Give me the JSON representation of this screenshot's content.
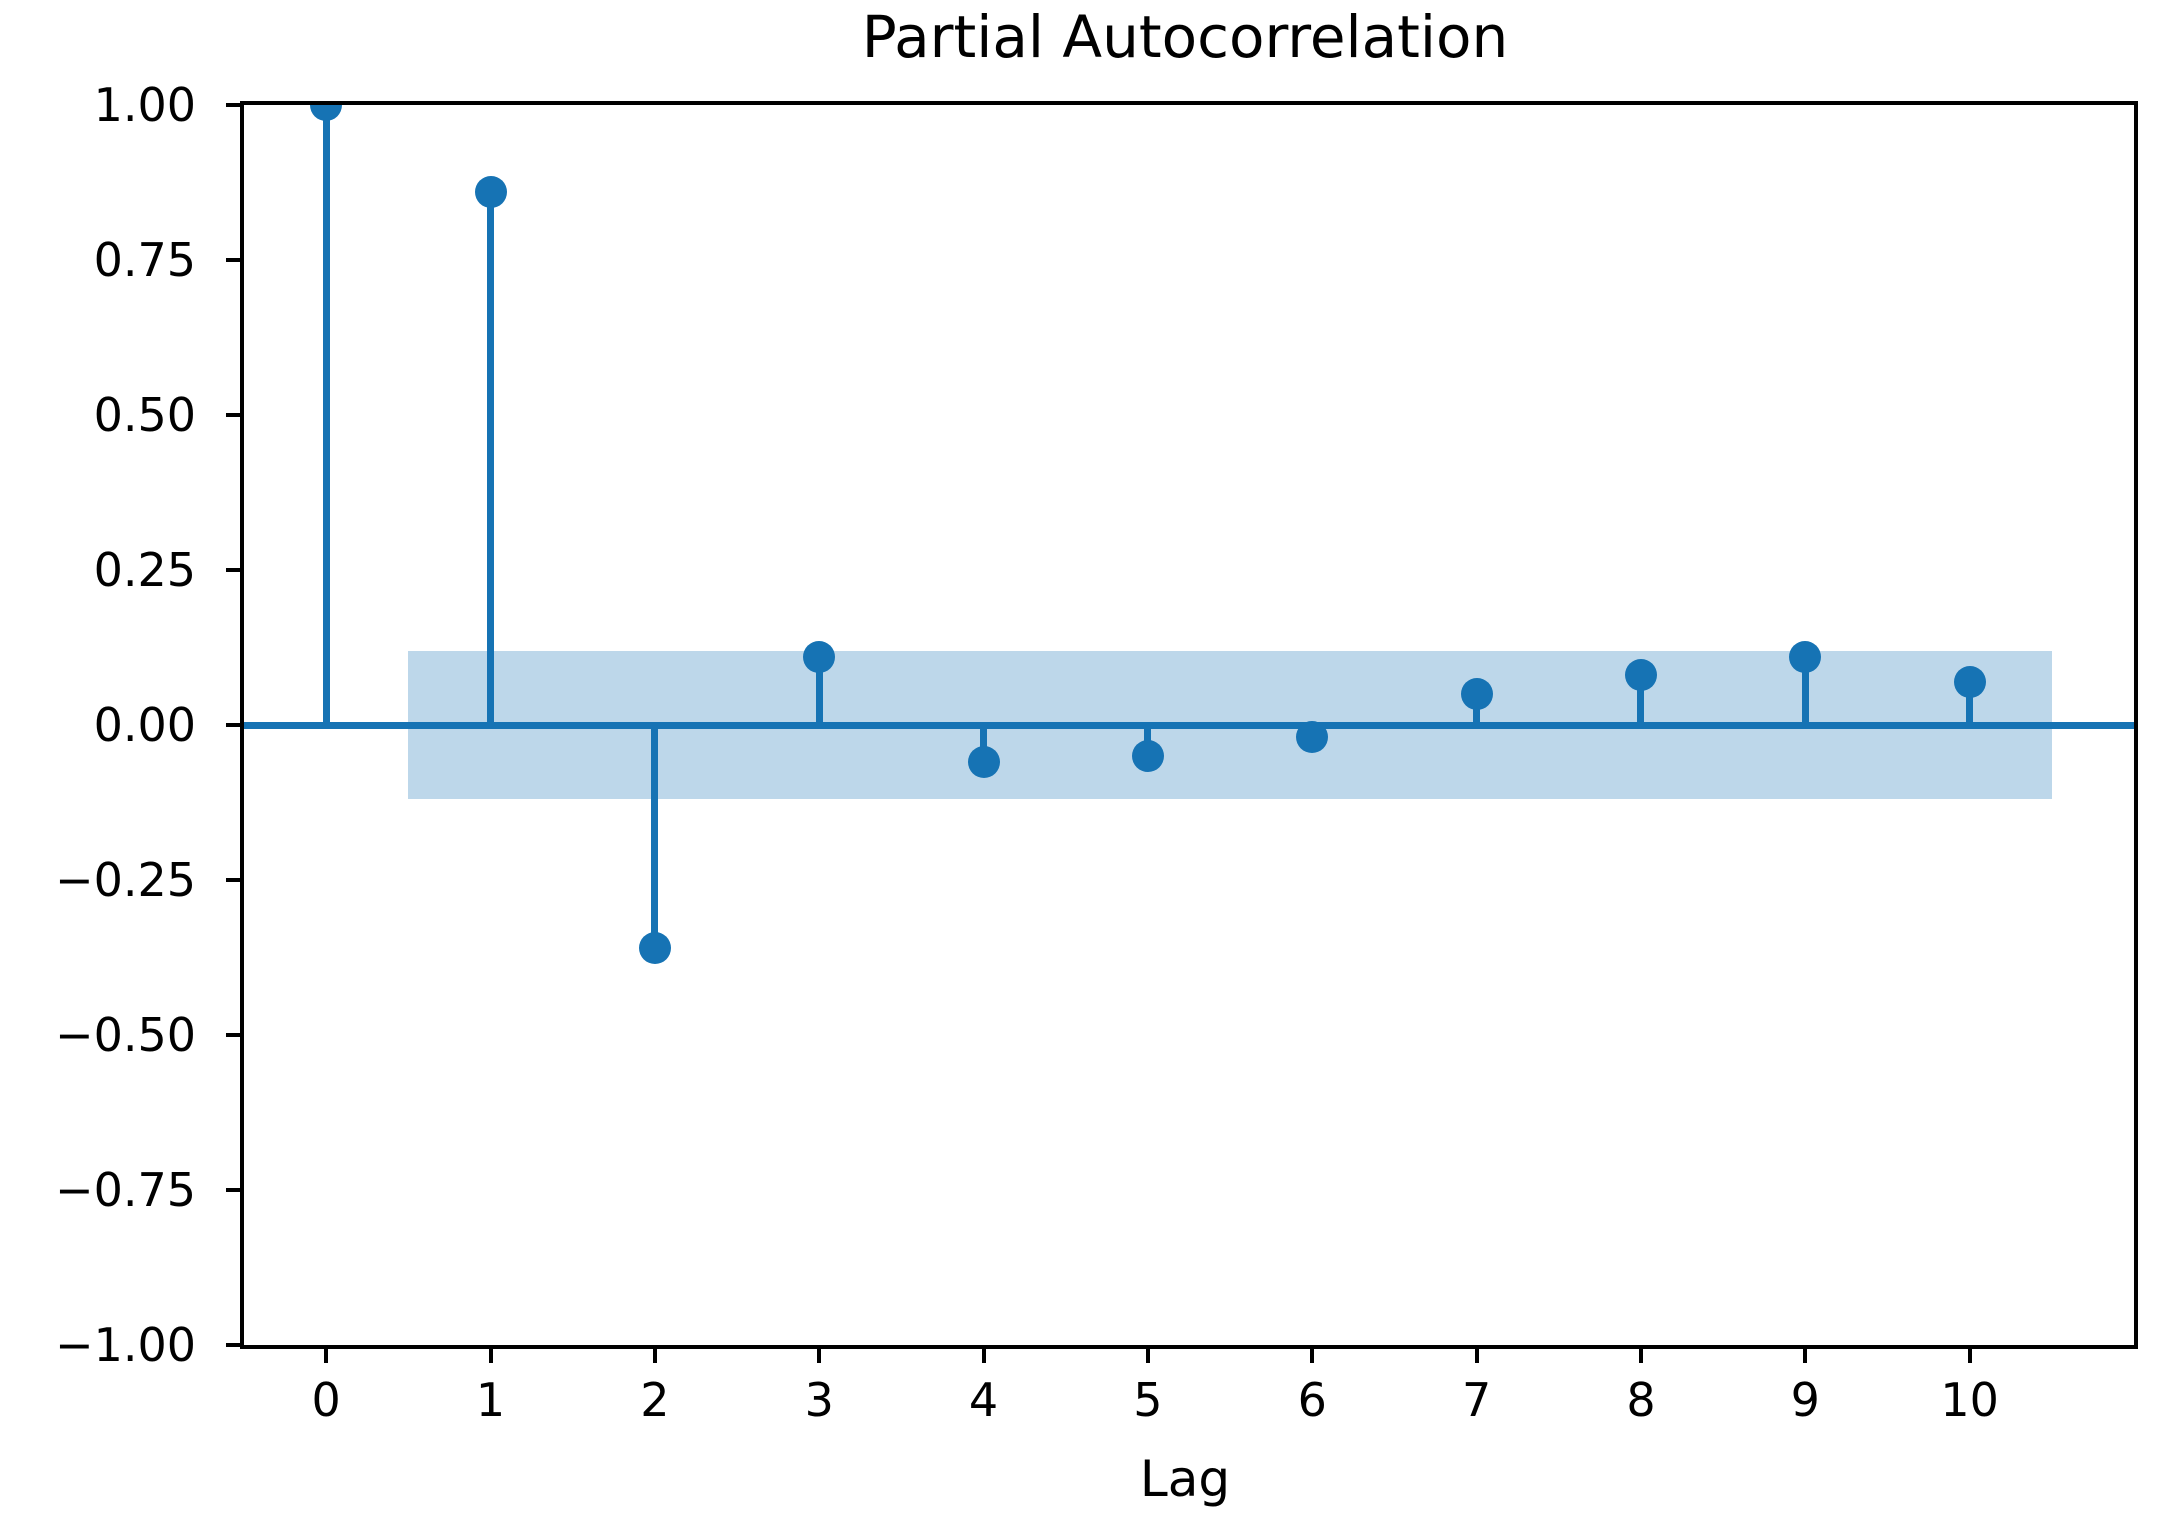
{
  "chart_data": {
    "type": "stem",
    "title": "Partial Autocorrelation",
    "xlabel": "Lag",
    "ylabel": "",
    "x": [
      0,
      1,
      2,
      3,
      4,
      5,
      6,
      7,
      8,
      9,
      10
    ],
    "values": [
      1.0,
      0.86,
      -0.36,
      0.11,
      -0.06,
      -0.05,
      -0.02,
      0.05,
      0.08,
      0.11,
      0.07
    ],
    "confidence_band": {
      "x_start": 0.5,
      "x_end": 10.5,
      "lower": -0.12,
      "upper": 0.12
    },
    "xlim": [
      -0.5,
      11.0
    ],
    "ylim": [
      -1.0,
      1.0
    ],
    "yticks": [
      {
        "value": 1.0,
        "label": "1.00"
      },
      {
        "value": 0.75,
        "label": "0.75"
      },
      {
        "value": 0.5,
        "label": "0.50"
      },
      {
        "value": 0.25,
        "label": "0.25"
      },
      {
        "value": 0.0,
        "label": "0.00"
      },
      {
        "value": -0.25,
        "label": "−0.25"
      },
      {
        "value": -0.5,
        "label": "−0.50"
      },
      {
        "value": -0.75,
        "label": "−0.75"
      },
      {
        "value": -1.0,
        "label": "−1.00"
      }
    ],
    "xticks": [
      {
        "value": 0,
        "label": "0"
      },
      {
        "value": 1,
        "label": "1"
      },
      {
        "value": 2,
        "label": "2"
      },
      {
        "value": 3,
        "label": "3"
      },
      {
        "value": 4,
        "label": "4"
      },
      {
        "value": 5,
        "label": "5"
      },
      {
        "value": 6,
        "label": "6"
      },
      {
        "value": 7,
        "label": "7"
      },
      {
        "value": 8,
        "label": "8"
      },
      {
        "value": 9,
        "label": "9"
      },
      {
        "value": 10,
        "label": "10"
      }
    ],
    "colors": {
      "stem": "#1673b4",
      "marker": "#1673b4",
      "zero_line": "#1673b4",
      "band": "#bdd7ea",
      "axis": "#000000",
      "text": "#000000"
    },
    "grid": false,
    "legend": null
  }
}
